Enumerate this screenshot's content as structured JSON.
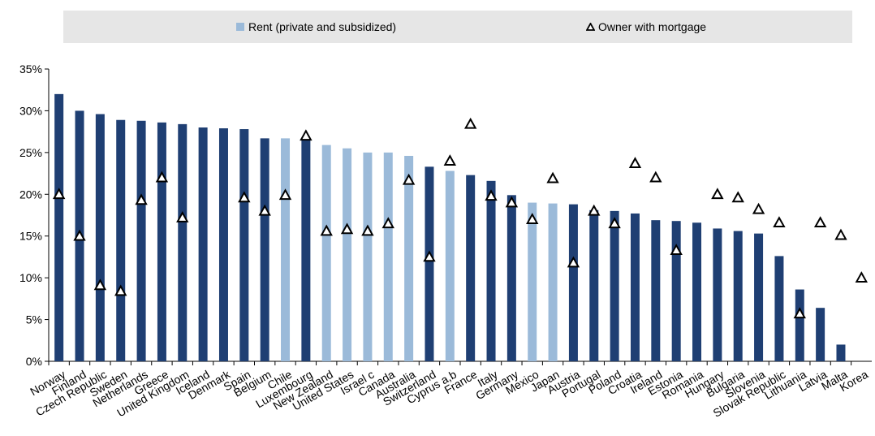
{
  "chart_data": {
    "type": "bar",
    "title": "",
    "xlabel": "",
    "ylabel": "",
    "ylim": [
      0,
      35
    ],
    "yticks": [
      "0%",
      "5%",
      "10%",
      "15%",
      "20%",
      "25%",
      "30%",
      "35%"
    ],
    "grid": false,
    "legend_position": "top",
    "categories": [
      "Norway",
      "Finland",
      "Czech Republic",
      "Sweden",
      "Netherlands",
      "Greece",
      "United Kingdom",
      "Iceland",
      "Denmark",
      "Spain",
      "Belgium",
      "Chile",
      "Luxembourg",
      "New Zealand",
      "United States",
      "Israel c",
      "Canada",
      "Australia",
      "Switzerland",
      "Cyprus a,b",
      "France",
      "Italy",
      "Germany",
      "Mexico",
      "Japan",
      "Austria",
      "Portugal",
      "Poland",
      "Croatia",
      "Ireland",
      "Estonia",
      "Romania",
      "Hungary",
      "Bulgaria",
      "Slovenia",
      "Slovak Republic",
      "Lithuania",
      "Latvia",
      "Malta",
      "Korea"
    ],
    "series": [
      {
        "name": "Rent (private and subsidized)",
        "kind": "bar",
        "values": [
          32.0,
          30.0,
          29.6,
          28.9,
          28.8,
          28.6,
          28.4,
          28.0,
          27.9,
          27.8,
          26.7,
          26.7,
          26.5,
          25.9,
          25.5,
          25.0,
          25.0,
          24.6,
          23.3,
          22.8,
          22.3,
          21.6,
          19.9,
          19.0,
          18.9,
          18.8,
          18.1,
          18.0,
          17.7,
          16.9,
          16.8,
          16.6,
          15.9,
          15.6,
          15.3,
          12.6,
          8.6,
          6.4,
          2.0,
          null
        ],
        "highlight": [
          false,
          false,
          false,
          false,
          false,
          false,
          false,
          false,
          false,
          false,
          false,
          true,
          false,
          true,
          true,
          true,
          true,
          true,
          false,
          true,
          false,
          false,
          false,
          true,
          true,
          false,
          false,
          false,
          false,
          false,
          false,
          false,
          false,
          false,
          false,
          false,
          false,
          false,
          false,
          false
        ]
      },
      {
        "name": "Owner with mortgage",
        "kind": "triangle-marker",
        "values": [
          20.0,
          15.0,
          9.1,
          8.4,
          19.3,
          22.0,
          17.2,
          null,
          null,
          19.6,
          18.0,
          19.9,
          27.0,
          15.6,
          15.8,
          15.6,
          16.5,
          21.7,
          12.5,
          24.0,
          28.4,
          19.8,
          19.0,
          17.0,
          21.9,
          11.8,
          18.0,
          16.5,
          23.7,
          22.0,
          13.3,
          null,
          20.0,
          19.6,
          18.2,
          16.6,
          5.7,
          16.6,
          15.1,
          10.0
        ]
      }
    ],
    "colors": {
      "dark": "#1f3f73",
      "light": "#9bbad9",
      "marker_stroke": "#000000"
    }
  }
}
